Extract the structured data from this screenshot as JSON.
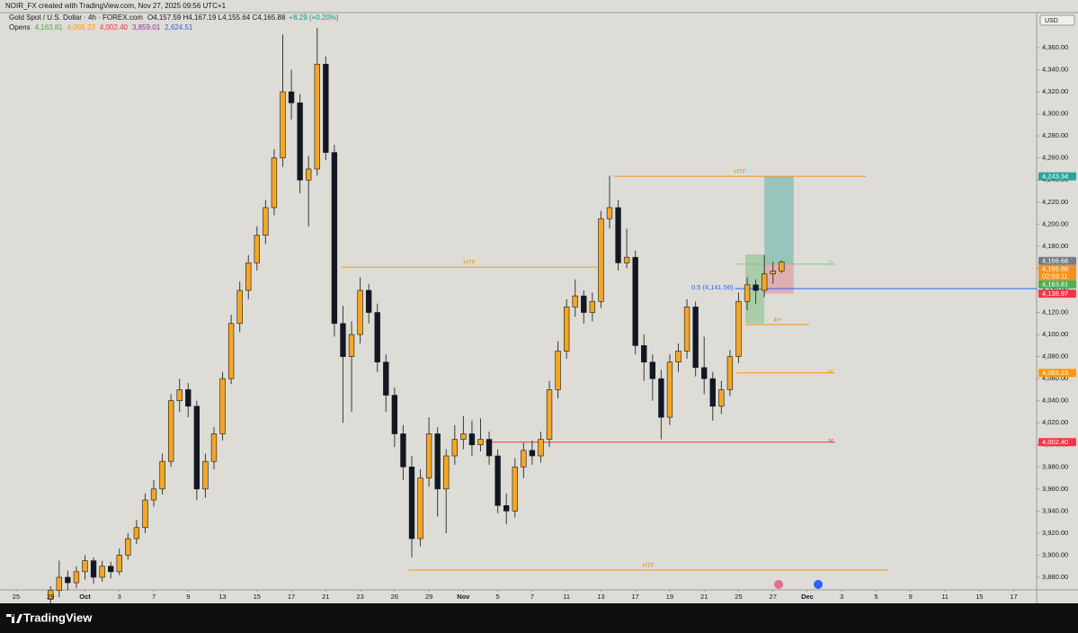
{
  "header": {
    "attribution": "NOIR_FX created with TradingView.com, Nov 27, 2025 09:56 UTC+1",
    "symbol": "Gold Spot / U.S. Dollar · 4h · FOREX.com",
    "ohlc": "O4,157.59 H4,167.19 L4,155.64 C4,165.88",
    "change": "+8.29 (+0.20%)",
    "opens_title": "Opens",
    "opens": [
      {
        "label": "4,163.81",
        "color": "#4caf50"
      },
      {
        "label": "4,065.23",
        "color": "#ff9800"
      },
      {
        "label": "4,002.40",
        "color": "#f23645"
      },
      {
        "label": "3,859.01",
        "color": "#9c27b0"
      },
      {
        "label": "2,624.51",
        "color": "#2962ff"
      }
    ],
    "currency": "USD"
  },
  "footer": {
    "brand": "TradingView"
  },
  "chart_data": {
    "type": "candlestick",
    "up_color": "#f5a623",
    "down_color": "#131722",
    "wick_color": "#3a3a3a",
    "x": [
      2,
      2.5,
      3,
      3.5,
      4,
      4.5,
      5,
      5.5,
      6,
      6.5,
      7,
      7.5,
      8,
      8.5,
      9,
      9.5,
      10,
      10.5,
      11,
      11.5,
      12,
      12.5,
      13,
      13.5,
      14,
      14.5,
      15,
      15.5,
      16,
      16.5,
      17,
      17.5,
      18,
      18.5,
      19,
      19.5,
      20,
      20.5,
      21,
      21.5,
      22,
      22.5,
      23,
      23.5,
      24,
      24.5,
      25,
      25.5,
      26,
      26.5,
      27,
      27.5,
      28,
      28.5,
      29,
      29.5,
      30,
      30.5,
      31,
      31.5,
      32,
      32.5,
      33,
      33.5,
      34,
      34.5,
      35,
      35.5,
      36,
      36.5,
      37,
      37.5,
      38,
      38.5,
      39,
      39.5,
      40,
      40.5,
      41,
      41.5,
      42,
      42.5,
      43,
      43.5,
      44,
      44.5
    ],
    "open": [
      3860,
      3868,
      3880,
      3875,
      3885,
      3895,
      3880,
      3890,
      3885,
      3900,
      3915,
      3925,
      3950,
      3960,
      3985,
      4040,
      4050,
      4035,
      3960,
      3985,
      4010,
      4060,
      4110,
      4140,
      4165,
      4190,
      4215,
      4260,
      4320,
      4310,
      4240,
      4250,
      4345,
      4265,
      4110,
      4080,
      4100,
      4140,
      4120,
      4075,
      4045,
      4010,
      3980,
      3915,
      3970,
      4010,
      3960,
      3990,
      4005,
      4010,
      4000,
      4005,
      3990,
      3945,
      3940,
      3980,
      3995,
      3990,
      4005,
      4050,
      4085,
      4125,
      4135,
      4120,
      4130,
      4205,
      4215,
      4165,
      4170,
      4090,
      4075,
      4060,
      4025,
      4075,
      4085,
      4125,
      4070,
      4060,
      4035,
      4050,
      4080,
      4130,
      4145,
      4140,
      4155,
      4157.59
    ],
    "high": [
      3872,
      3895,
      3886,
      3890,
      3900,
      3898,
      3895,
      3894,
      3906,
      3920,
      3932,
      3956,
      3968,
      3992,
      4046,
      4060,
      4056,
      4040,
      3992,
      4016,
      4066,
      4118,
      4148,
      4172,
      4198,
      4222,
      4268,
      4372,
      4340,
      4318,
      4262,
      4378,
      4352,
      4272,
      4126,
      4112,
      4152,
      4146,
      4128,
      4082,
      4052,
      4018,
      3990,
      3978,
      4025,
      4016,
      3996,
      4018,
      4026,
      4022,
      4024,
      4012,
      3996,
      3956,
      3988,
      4002,
      4004,
      4012,
      4058,
      4094,
      4132,
      4150,
      4140,
      4138,
      4212,
      4244,
      4222,
      4196,
      4176,
      4100,
      4082,
      4068,
      4082,
      4092,
      4132,
      4130,
      4098,
      4066,
      4058,
      4086,
      4138,
      4152,
      4150,
      4172,
      4166,
      4167.19
    ],
    "low": [
      3855,
      3862,
      3868,
      3870,
      3878,
      3874,
      3876,
      3879,
      3882,
      3896,
      3910,
      3920,
      3944,
      3955,
      3980,
      4030,
      4025,
      3950,
      3952,
      3978,
      4004,
      4055,
      4102,
      4132,
      4158,
      4182,
      4208,
      4252,
      4295,
      4228,
      4198,
      4244,
      4258,
      4098,
      4020,
      4030,
      4092,
      4110,
      4066,
      4030,
      3998,
      3968,
      3898,
      3908,
      3962,
      3935,
      3920,
      3982,
      3996,
      3990,
      3994,
      3982,
      3938,
      3928,
      3934,
      3970,
      3982,
      3984,
      3998,
      4042,
      4078,
      4116,
      4110,
      4112,
      4124,
      4196,
      4158,
      4160,
      4082,
      4058,
      4040,
      4005,
      4018,
      4066,
      4078,
      4062,
      4046,
      4022,
      4028,
      4044,
      4074,
      4122,
      4128,
      4134,
      4146,
      4155.64
    ],
    "close": [
      3868,
      3880,
      3875,
      3885,
      3895,
      3880,
      3890,
      3885,
      3900,
      3915,
      3925,
      3950,
      3960,
      3985,
      4040,
      4050,
      4035,
      3960,
      3985,
      4010,
      4060,
      4110,
      4140,
      4165,
      4190,
      4215,
      4260,
      4320,
      4310,
      4240,
      4250,
      4345,
      4265,
      4110,
      4080,
      4100,
      4140,
      4120,
      4075,
      4045,
      4010,
      3980,
      3915,
      3970,
      4010,
      3960,
      3990,
      4005,
      4010,
      4000,
      4005,
      3990,
      3945,
      3940,
      3980,
      3995,
      3990,
      4005,
      4050,
      4085,
      4125,
      4135,
      4120,
      4130,
      4205,
      4215,
      4165,
      4170,
      4090,
      4075,
      4060,
      4025,
      4075,
      4085,
      4125,
      4070,
      4060,
      4035,
      4050,
      4080,
      4130,
      4145,
      4140,
      4155,
      4157.59,
      4165.88
    ],
    "xlim": [
      -0.94,
      59.33
    ],
    "xticks": [
      {
        "value": 0,
        "label": "25"
      },
      {
        "value": 2,
        "label": "29"
      },
      {
        "value": 4,
        "label": "Oct"
      },
      {
        "value": 6,
        "label": "3"
      },
      {
        "value": 8,
        "label": "7"
      },
      {
        "value": 10,
        "label": "9"
      },
      {
        "value": 12,
        "label": "13"
      },
      {
        "value": 14,
        "label": "15"
      },
      {
        "value": 16,
        "label": "17"
      },
      {
        "value": 18,
        "label": "21"
      },
      {
        "value": 20,
        "label": "23"
      },
      {
        "value": 22,
        "label": "26"
      },
      {
        "value": 24,
        "label": "29"
      },
      {
        "value": 26,
        "label": "Nov"
      },
      {
        "value": 28,
        "label": "5"
      },
      {
        "value": 30,
        "label": "7"
      },
      {
        "value": 32,
        "label": "11"
      },
      {
        "value": 34,
        "label": "13"
      },
      {
        "value": 36,
        "label": "17"
      },
      {
        "value": 38,
        "label": "19"
      },
      {
        "value": 40,
        "label": "21"
      },
      {
        "value": 42,
        "label": "25"
      },
      {
        "value": 44,
        "label": "27"
      },
      {
        "value": 46,
        "label": "Dec"
      },
      {
        "value": 48,
        "label": "3"
      },
      {
        "value": 50,
        "label": "5"
      },
      {
        "value": 52,
        "label": "9"
      },
      {
        "value": 54,
        "label": "11"
      },
      {
        "value": 56,
        "label": "15"
      },
      {
        "value": 58,
        "label": "17"
      }
    ],
    "ylim": [
      3869.4,
      4391.8
    ],
    "yticks": [
      {
        "value": 3880,
        "label": "3,880.00"
      },
      {
        "value": 3900,
        "label": "3,900.00"
      },
      {
        "value": 3920,
        "label": "3,920.00"
      },
      {
        "value": 3940,
        "label": "3,940.00"
      },
      {
        "value": 3960,
        "label": "3,960.00"
      },
      {
        "value": 3980,
        "label": "3,980.00"
      },
      {
        "value": 4000,
        "label": "4,000.00"
      },
      {
        "value": 4020,
        "label": "4,020.00"
      },
      {
        "value": 4040,
        "label": "4,040.00"
      },
      {
        "value": 4060,
        "label": "4,060.00"
      },
      {
        "value": 4080,
        "label": "4,080.00"
      },
      {
        "value": 4100,
        "label": "4,100.00"
      },
      {
        "value": 4120,
        "label": "4,120.00"
      },
      {
        "value": 4140,
        "label": "4,140.00"
      },
      {
        "value": 4160,
        "label": "4,160.00"
      },
      {
        "value": 4180,
        "label": "4,180.00"
      },
      {
        "value": 4200,
        "label": "4,200.00"
      },
      {
        "value": 4220,
        "label": "4,220.00"
      },
      {
        "value": 4240,
        "label": "4,240.00"
      },
      {
        "value": 4260,
        "label": "4,260.00"
      },
      {
        "value": 4280,
        "label": "4,280.00"
      },
      {
        "value": 4300,
        "label": "4,300.00"
      },
      {
        "value": 4320,
        "label": "4,320.00"
      },
      {
        "value": 4340,
        "label": "4,340.00"
      },
      {
        "value": 4360,
        "label": "4,360.00"
      }
    ],
    "grid": false,
    "zones": [
      {
        "top": 4243.34,
        "bottom": 4163.81,
        "start": 43.5,
        "end": 45.2,
        "color": "#5fb3a6"
      },
      {
        "top": 4163.81,
        "bottom": 4136.97,
        "start": 43.5,
        "end": 45.2,
        "color": "#e08a96"
      },
      {
        "top": 4172.6,
        "bottom": 4110,
        "start": 42.4,
        "end": 43.5,
        "color": "#7fbf7f"
      }
    ],
    "levels": [
      {
        "label": "HTF",
        "value": 4243.34,
        "start": 34.76,
        "end": 49.4,
        "color": "#f7931a",
        "label_position": "center"
      },
      {
        "label": "HTF",
        "value": 4161.1,
        "start": 18.9,
        "end": 33.8,
        "color": "#f7931a",
        "label_position": "center"
      },
      {
        "label": "HTF",
        "value": 3886.5,
        "start": 22.8,
        "end": 50.7,
        "color": "#f7931a",
        "label_position": "center"
      },
      {
        "label": "4H",
        "value": 4109,
        "start": 42.4,
        "end": 46.1,
        "color": "#f7931a",
        "label_position": "center"
      },
      {
        "label": "D",
        "value": 4163.81,
        "start": 41.9,
        "end": 47.6,
        "color": "#8bc48b",
        "label_position": "end"
      },
      {
        "label": "W",
        "value": 4065.23,
        "start": 41.9,
        "end": 47.6,
        "color": "#ff9800",
        "label_position": "end"
      },
      {
        "label": "M",
        "value": 4002.4,
        "start": 27.3,
        "end": 47.6,
        "color": "#f23645",
        "label_position": "end"
      },
      {
        "label": "0.5 (4,141.56)",
        "value": 4141.56,
        "start": 41.8,
        "end": 59.33,
        "color": "#2962ff",
        "label_position": "start"
      }
    ],
    "price_labels": [
      {
        "value": 4243.34,
        "label": "4,243.34",
        "color": "#26a69a"
      },
      {
        "value": 4166.68,
        "label": "4,166.68",
        "color": "#787b86"
      },
      {
        "value": 4165.88,
        "label": "4,165.88",
        "color": "#f7931a",
        "sublabel": "02:03:11"
      },
      {
        "value": 4163.81,
        "label": "4,163.81",
        "color": "#4caf50"
      },
      {
        "value": 4136.97,
        "label": "4,136.97",
        "color": "#f23645"
      },
      {
        "value": 4065.23,
        "label": "4,065.23",
        "color": "#ff9800"
      },
      {
        "value": 4002.4,
        "label": "4,002.40",
        "color": "#f23645"
      }
    ]
  }
}
